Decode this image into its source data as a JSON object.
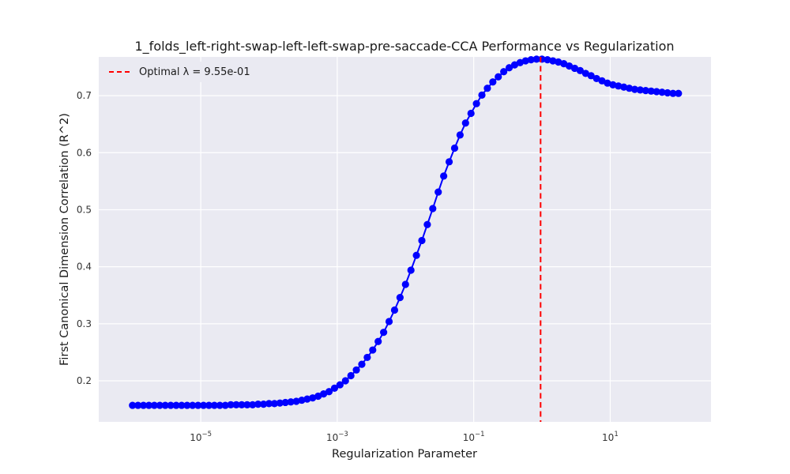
{
  "chart_data": {
    "type": "line",
    "title": "1_folds_left-right-swap-left-left-swap-pre-saccade-CCA Performance vs Regularization",
    "xlabel": "Regularization Parameter",
    "ylabel": "First Canonical Dimension Correlation (R^2)",
    "x_scale": "log",
    "xlim": [
      3.2e-07,
      300
    ],
    "ylim": [
      0.128,
      0.768
    ],
    "x_ticks": [
      {
        "value": 1e-05,
        "base": "10",
        "exp": "−5"
      },
      {
        "value": 0.001,
        "base": "10",
        "exp": "−3"
      },
      {
        "value": 0.1,
        "base": "10",
        "exp": "−1"
      },
      {
        "value": 10,
        "base": "10",
        "exp": "1"
      }
    ],
    "y_ticks": [
      {
        "value": 0.2,
        "label": "0.2"
      },
      {
        "value": 0.3,
        "label": "0.3"
      },
      {
        "value": 0.4,
        "label": "0.4"
      },
      {
        "value": 0.5,
        "label": "0.5"
      },
      {
        "value": 0.6,
        "label": "0.6"
      },
      {
        "value": 0.7,
        "label": "0.7"
      }
    ],
    "grid": true,
    "legend_position": "top-left",
    "series": [
      {
        "color": "#0000ff",
        "marker": "circle",
        "x_log10_start": -6,
        "x_log10_end": 2,
        "y": [
          0.157,
          0.157,
          0.157,
          0.157,
          0.157,
          0.157,
          0.157,
          0.157,
          0.157,
          0.157,
          0.157,
          0.157,
          0.157,
          0.157,
          0.157,
          0.157,
          0.157,
          0.157,
          0.158,
          0.158,
          0.158,
          0.158,
          0.158,
          0.159,
          0.159,
          0.16,
          0.16,
          0.161,
          0.162,
          0.163,
          0.164,
          0.166,
          0.168,
          0.17,
          0.173,
          0.177,
          0.181,
          0.187,
          0.193,
          0.2,
          0.209,
          0.219,
          0.229,
          0.241,
          0.254,
          0.269,
          0.285,
          0.304,
          0.324,
          0.346,
          0.369,
          0.394,
          0.42,
          0.446,
          0.474,
          0.502,
          0.531,
          0.559,
          0.584,
          0.608,
          0.631,
          0.652,
          0.669,
          0.686,
          0.701,
          0.713,
          0.724,
          0.733,
          0.742,
          0.749,
          0.754,
          0.758,
          0.761,
          0.763,
          0.764,
          0.764,
          0.763,
          0.761,
          0.759,
          0.756,
          0.752,
          0.748,
          0.744,
          0.739,
          0.735,
          0.73,
          0.726,
          0.722,
          0.719,
          0.717,
          0.715,
          0.713,
          0.711,
          0.71,
          0.709,
          0.708,
          0.707,
          0.706,
          0.705,
          0.704,
          0.704
        ]
      }
    ],
    "optimal_line": {
      "x": 0.955,
      "color": "#ff0000",
      "legend": "Optimal λ = 9.55e-01"
    }
  }
}
